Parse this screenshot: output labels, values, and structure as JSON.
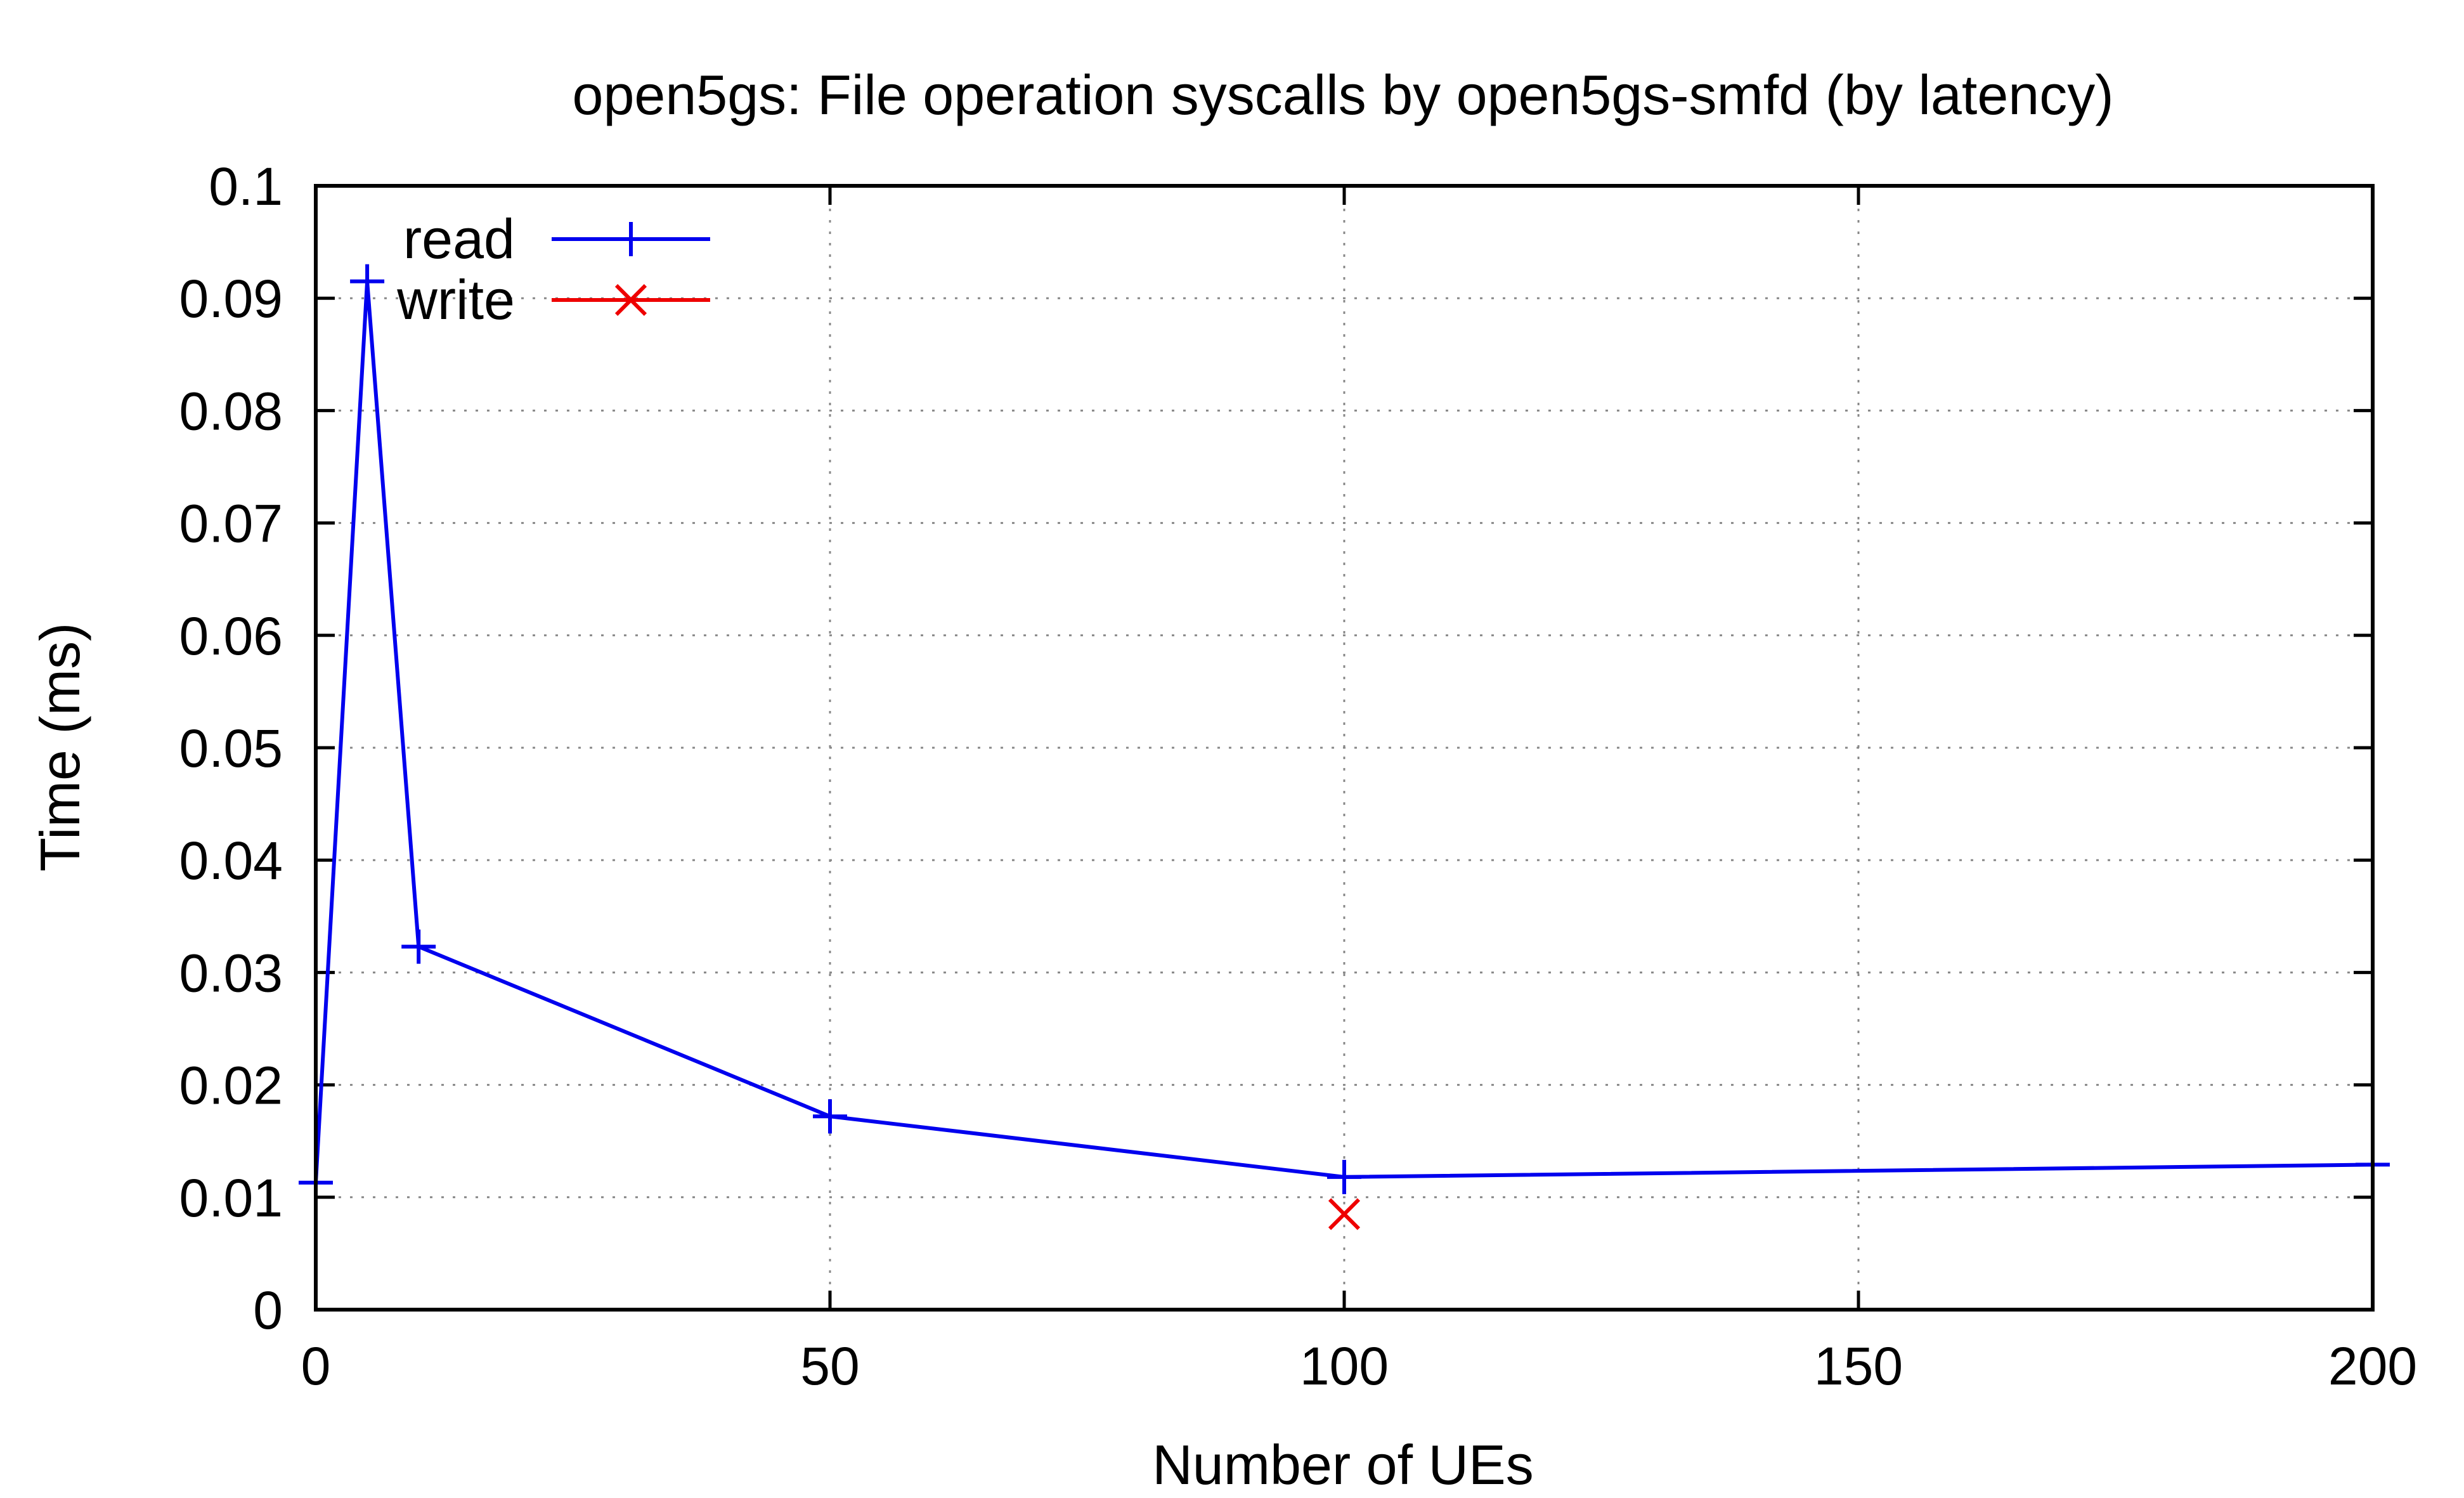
{
  "chart_data": {
    "type": "line",
    "title": "open5gs: File operation syscalls by open5gs-smfd (by latency)",
    "xlabel": "Number of UEs",
    "ylabel": "Time (ms)",
    "xlim": [
      0,
      200
    ],
    "ylim": [
      0,
      0.1
    ],
    "xticks": [
      0,
      50,
      100,
      150,
      200
    ],
    "yticks": [
      0,
      0.01,
      0.02,
      0.03,
      0.04,
      0.05,
      0.06,
      0.07,
      0.08,
      0.09,
      0.1
    ],
    "xtick_labels": [
      "0",
      "50",
      "100",
      "150",
      "200"
    ],
    "ytick_labels": [
      "0",
      "0.01",
      "0.02",
      "0.03",
      "0.04",
      "0.05",
      "0.06",
      "0.07",
      "0.08",
      "0.09",
      "0.1"
    ],
    "grid": true,
    "legend_position": "top-left",
    "series": [
      {
        "name": "read",
        "color": "#0000ee",
        "marker": "plus",
        "points": [
          {
            "x": 0,
            "y": 0.0113
          },
          {
            "x": 5,
            "y": 0.0915
          },
          {
            "x": 10,
            "y": 0.0323
          },
          {
            "x": 50,
            "y": 0.0172
          },
          {
            "x": 100,
            "y": 0.0118
          },
          {
            "x": 200,
            "y": 0.0129
          }
        ]
      },
      {
        "name": "write",
        "color": "#ee0000",
        "marker": "cross",
        "points": [
          {
            "x": 100,
            "y": 0.0085
          }
        ]
      }
    ]
  }
}
